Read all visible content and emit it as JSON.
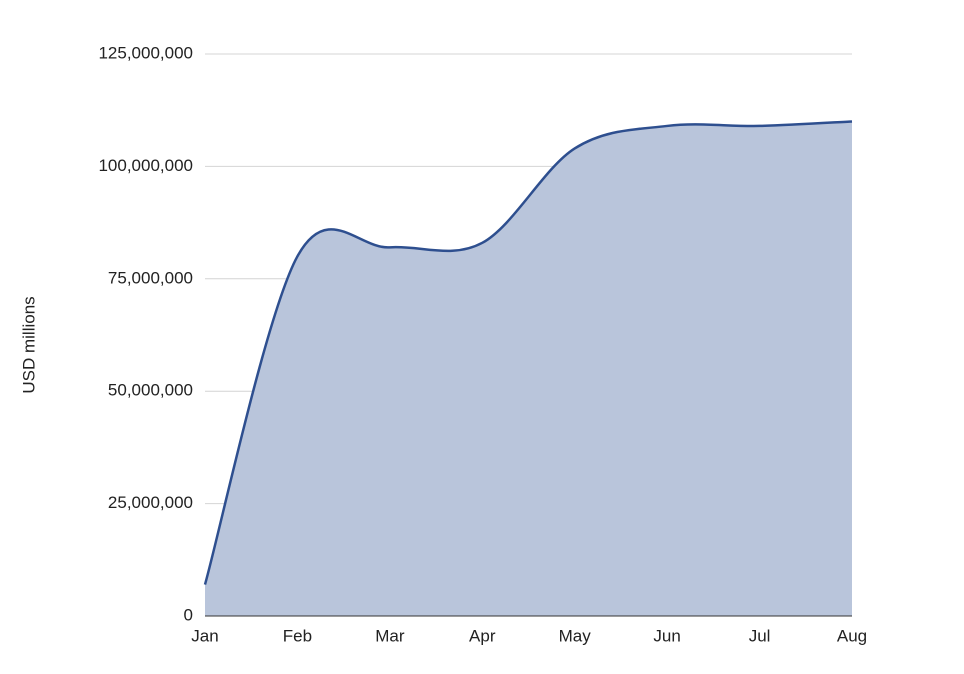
{
  "chart_data": {
    "type": "area",
    "y_label": "USD millions",
    "categories": [
      "Jan",
      "Feb",
      "Mar",
      "Apr",
      "May",
      "Jun",
      "Jul",
      "Aug"
    ],
    "values": [
      7000000,
      80000000,
      82000000,
      83000000,
      104000000,
      109000000,
      109000000,
      110000000
    ],
    "color": "#2e4f8f",
    "fill": "#b9c5db",
    "ylim": [
      0,
      125000000
    ],
    "yticks": [
      0,
      {
        "value": 25000000,
        "label": "25,000,000"
      },
      {
        "value": 50000000,
        "label": "50,000,000"
      },
      {
        "value": 75000000,
        "label": "75,000,000"
      },
      {
        "value": 100000000,
        "label": "100,000,000"
      },
      {
        "value": 125000000,
        "label": "125,000,000"
      }
    ],
    "grid": true
  }
}
